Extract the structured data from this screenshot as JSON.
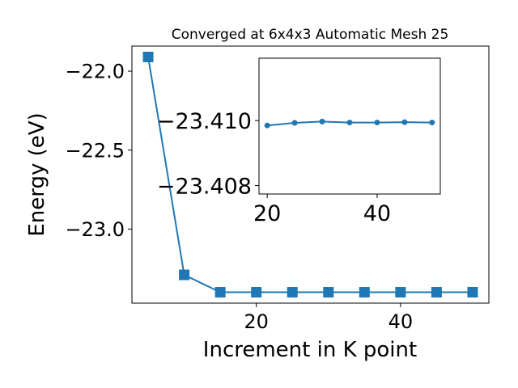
{
  "chart_data": [
    {
      "type": "line",
      "title": "Converged at 6x4x3 Automatic Mesh 25",
      "xlabel": "Increment in K point",
      "ylabel": "Energy (eV)",
      "x": [
        5,
        10,
        15,
        20,
        25,
        30,
        35,
        40,
        45,
        50
      ],
      "series": [
        {
          "values": [
            -21.91,
            -23.29,
            -23.4,
            -23.4,
            -23.4,
            -23.4,
            -23.4,
            -23.4,
            -23.4,
            -23.4
          ],
          "color": "#1f77b4",
          "marker": "square"
        }
      ],
      "xlim": [
        2.75,
        52.25
      ],
      "ylim": [
        -23.469,
        -21.841
      ],
      "xticks": [
        20,
        40
      ],
      "xtick_labels": [
        "20",
        "40"
      ],
      "yticks": [
        -22.0,
        -22.5,
        -23.0
      ],
      "ytick_labels": [
        "−22.0",
        "−22.5",
        "−23.0"
      ],
      "grid": false,
      "legend": "none"
    },
    {
      "type": "line",
      "role": "inset",
      "x": [
        20,
        25,
        30,
        35,
        40,
        45,
        50
      ],
      "series": [
        {
          "values": [
            -23.40985,
            -23.40993,
            -23.40997,
            -23.40994,
            -23.40994,
            -23.40995,
            -23.40994
          ],
          "color": "#1f77b4",
          "marker": "circle"
        }
      ],
      "xlim": [
        18.5,
        51.5
      ],
      "ylim": [
        -23.40774,
        -23.41192
      ],
      "xticks": [
        20,
        40
      ],
      "xtick_labels": [
        "20",
        "40"
      ],
      "yticks": [
        -23.41,
        -23.408
      ],
      "ytick_labels": [
        "−23.410",
        "−23.408"
      ],
      "grid": false,
      "legend": "none"
    }
  ]
}
